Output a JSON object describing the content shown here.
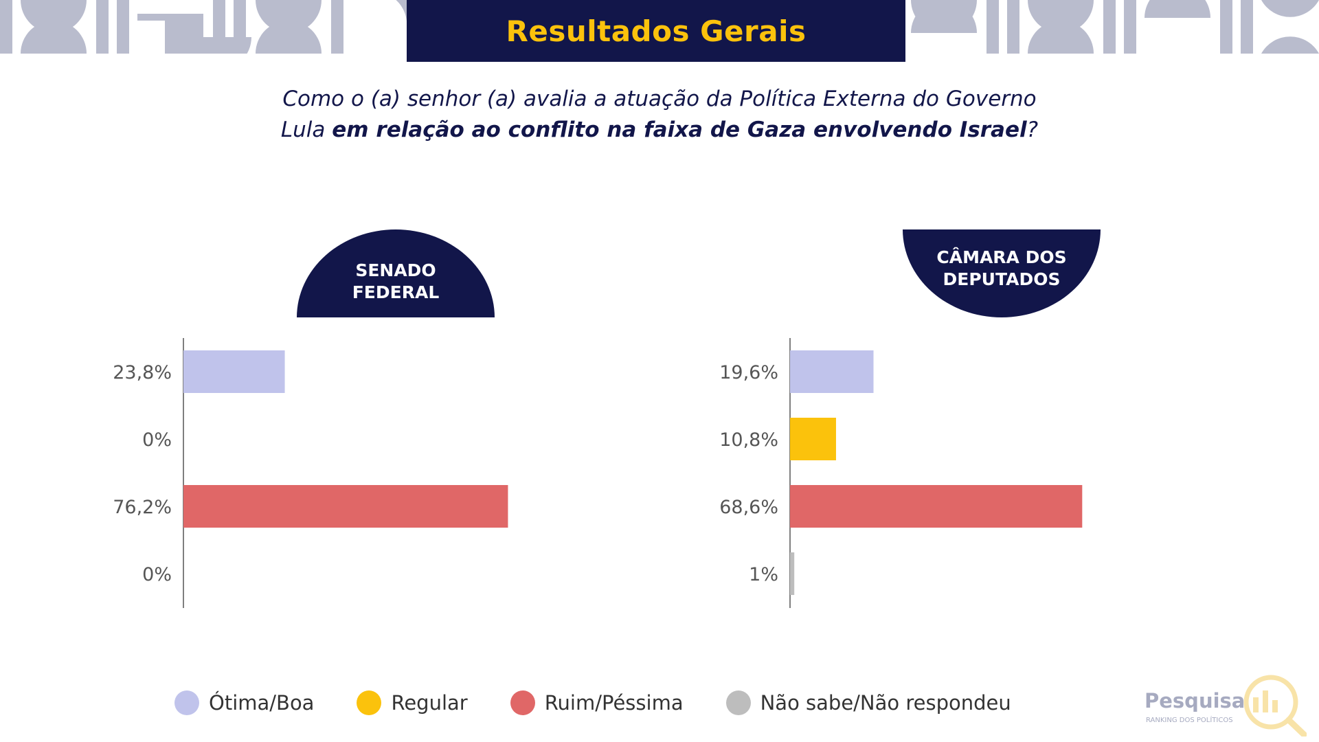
{
  "header": {
    "title": "Resultados Gerais"
  },
  "question": {
    "line1": "Como o (a) senhor (a) avalia a atuação da Política Externa do Governo",
    "line2_a": "Lula ",
    "line2_b": "em relação ao conflito na faixa de Gaza envolvendo Israel",
    "line2_c": "?"
  },
  "colors": {
    "navy": "#12164a",
    "gold": "#fbc20c",
    "otima_boa": "#c0c3eb",
    "regular": "#fbc20c",
    "ruim_pessima": "#e06767",
    "nao_sabe": "#bdbdbd"
  },
  "chart_data": [
    {
      "type": "bar",
      "orientation": "horizontal",
      "title": "SENADO FEDERAL",
      "title_lines": [
        "SENADO",
        "FEDERAL"
      ],
      "categories": [
        "Ótima/Boa",
        "Regular",
        "Ruim/Péssima",
        "Não sabe/Não respondeu"
      ],
      "values": [
        23.8,
        0,
        76.2,
        0
      ],
      "value_labels": [
        "23,8%",
        "0%",
        "76,2%",
        "0%"
      ],
      "unit": "%",
      "xlim": [
        0,
        100
      ]
    },
    {
      "type": "bar",
      "orientation": "horizontal",
      "title": "CÂMARA DOS DEPUTADOS",
      "title_lines": [
        "CÂMARA DOS",
        "DEPUTADOS"
      ],
      "categories": [
        "Ótima/Boa",
        "Regular",
        "Ruim/Péssima",
        "Não sabe/Não respondeu"
      ],
      "values": [
        19.6,
        10.8,
        68.6,
        1
      ],
      "value_labels": [
        "19,6%",
        "10,8%",
        "68,6%",
        "1%"
      ],
      "unit": "%",
      "xlim": [
        0,
        100
      ]
    }
  ],
  "legend": [
    {
      "label": "Ótima/Boa",
      "color": "#c0c3eb"
    },
    {
      "label": "Regular",
      "color": "#fbc20c"
    },
    {
      "label": "Ruim/Péssima",
      "color": "#e06767"
    },
    {
      "label": "Não sabe/Não respondeu",
      "color": "#bdbdbd"
    }
  ],
  "brand": {
    "name": "Pesquisa",
    "sub": "RANKING DOS POLÍTICOS"
  }
}
